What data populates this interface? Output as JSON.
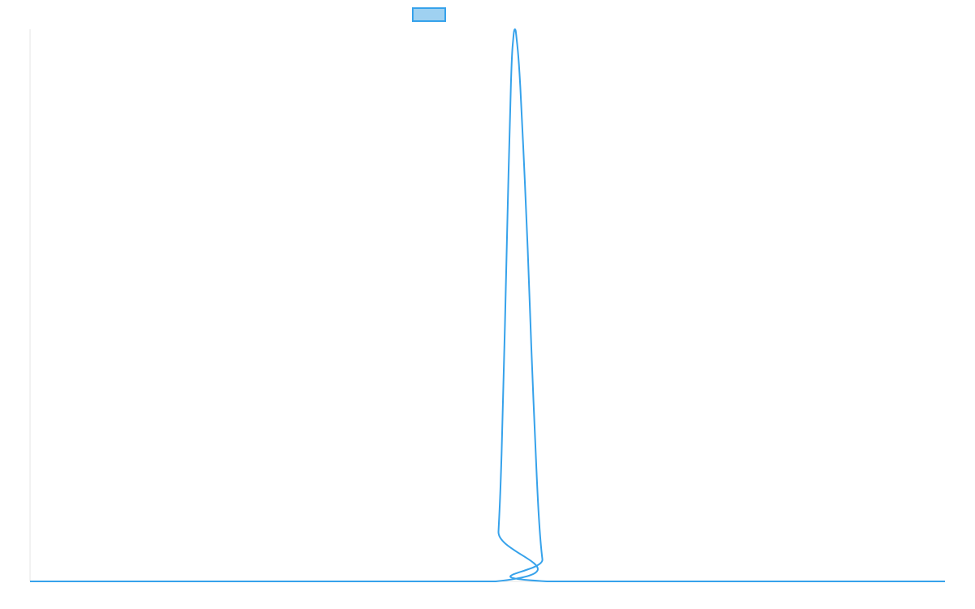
{
  "chart_data": {
    "type": "line",
    "title": "",
    "xlabel": "",
    "ylabel": "",
    "grid": false,
    "legend": {
      "position": "top-center",
      "entries": [
        {
          "label": "",
          "swatch_fill": "#9fd1f1",
          "swatch_stroke": "#36a2eb"
        }
      ]
    },
    "xlim": [
      0,
      1000
    ],
    "ylim": [
      0,
      1
    ],
    "series": [
      {
        "color": "#36a2eb",
        "points": [
          [
            0,
            0
          ],
          [
            509,
            0
          ],
          [
            512,
            0.09
          ],
          [
            515,
            0.21
          ],
          [
            519,
            0.46
          ],
          [
            523,
            0.74
          ],
          [
            526,
            0.92
          ],
          [
            528,
            0.98
          ],
          [
            530,
            1.0
          ],
          [
            532,
            0.98
          ],
          [
            535,
            0.92
          ],
          [
            539,
            0.79
          ],
          [
            544,
            0.6
          ],
          [
            548,
            0.42
          ],
          [
            552,
            0.26
          ],
          [
            556,
            0.12
          ],
          [
            560,
            0.04
          ],
          [
            565,
            0.0
          ],
          [
            1000,
            0
          ]
        ]
      }
    ]
  }
}
